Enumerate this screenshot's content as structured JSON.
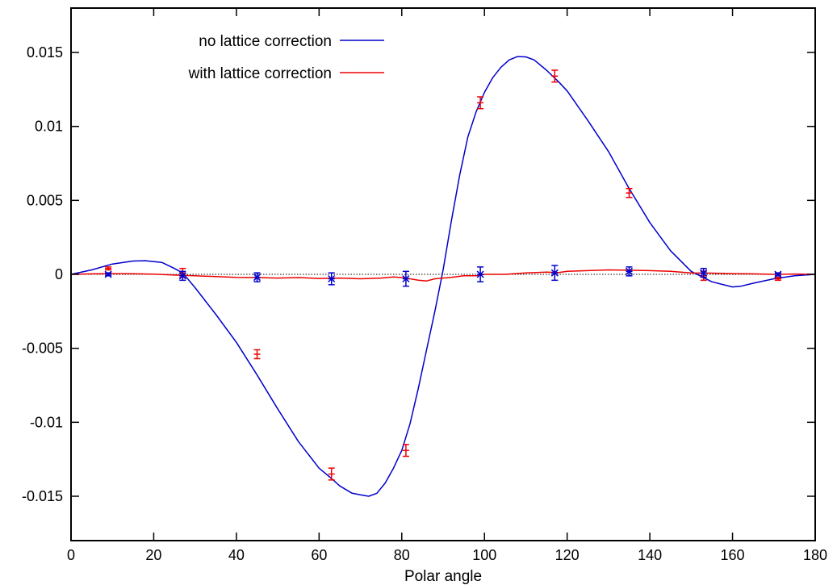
{
  "chart_data": {
    "type": "line",
    "title": "",
    "xlabel": "Polar angle",
    "ylabel": "",
    "xlim": [
      0,
      180
    ],
    "ylim": [
      -0.018,
      0.018
    ],
    "x_ticks": [
      "0",
      "20",
      "40",
      "60",
      "80",
      "100",
      "120",
      "140",
      "160",
      "180"
    ],
    "y_ticks": [
      "-0.015",
      "-0.01",
      "-0.005",
      "0",
      "0.005",
      "0.01",
      "0.015"
    ],
    "legend_position": "top-left",
    "grid": false,
    "zero_reference_line": true,
    "series": [
      {
        "name": "no lattice correction",
        "color": "#0000cc",
        "style": "line",
        "x": [
          0,
          5,
          10,
          15,
          18,
          22,
          25,
          27,
          30,
          35,
          40,
          45,
          50,
          55,
          60,
          63,
          65,
          68,
          70,
          72,
          74,
          76,
          78,
          80,
          82,
          84,
          86,
          88,
          90,
          92,
          94,
          96,
          98,
          100,
          102,
          104,
          106,
          108,
          110,
          112,
          115,
          118,
          120,
          125,
          130,
          135,
          140,
          145,
          150,
          155,
          160,
          162,
          165,
          170,
          175,
          180
        ],
        "y": [
          0,
          0.0003,
          0.0007,
          0.0009,
          0.00092,
          0.0008,
          0.0004,
          0.0001,
          -0.0009,
          -0.0027,
          -0.0046,
          -0.0068,
          -0.0091,
          -0.0113,
          -0.0131,
          -0.0138,
          -0.0143,
          -0.0148,
          -0.0149,
          -0.015,
          -0.0148,
          -0.0141,
          -0.0131,
          -0.0119,
          -0.0101,
          -0.0077,
          -0.0051,
          -0.0025,
          0.0003,
          0.0036,
          0.0067,
          0.0093,
          0.011,
          0.0123,
          0.0133,
          0.014,
          0.0145,
          0.01472,
          0.0147,
          0.0145,
          0.0138,
          0.013,
          0.0124,
          0.0104,
          0.0083,
          0.0058,
          0.0035,
          0.0016,
          0.0002,
          -0.0005,
          -0.00085,
          -0.0008,
          -0.0006,
          -0.0003,
          -0.0001,
          0
        ]
      },
      {
        "name": "with lattice correction",
        "color": "#ee0000",
        "style": "line",
        "x": [
          0,
          5,
          10,
          15,
          20,
          25,
          30,
          35,
          40,
          45,
          50,
          55,
          60,
          65,
          70,
          75,
          78,
          80,
          82,
          84,
          86,
          88,
          90,
          92,
          95,
          98,
          100,
          105,
          110,
          115,
          118,
          120,
          125,
          130,
          135,
          140,
          145,
          150,
          155,
          160,
          165,
          170,
          175,
          180
        ],
        "y": [
          0,
          3e-05,
          5e-05,
          4e-05,
          1e-05,
          -5e-05,
          -0.0001,
          -0.00015,
          -0.0002,
          -0.00022,
          -0.00025,
          -0.00022,
          -0.00028,
          -0.00025,
          -0.0003,
          -0.00025,
          -0.00018,
          -0.00022,
          -0.0003,
          -0.0004,
          -0.00045,
          -0.0003,
          -0.00025,
          -0.0002,
          -0.0001,
          -0.0001,
          0,
          0,
          0.0001,
          0.00015,
          0.00012,
          0.0002,
          0.00025,
          0.0003,
          0.00028,
          0.00025,
          0.0002,
          0.0001,
          8e-05,
          5e-05,
          3e-05,
          0,
          2e-05,
          0
        ]
      }
    ],
    "error_points": [
      {
        "color": "#ee0000",
        "marker": "plus",
        "x": [
          9,
          27,
          45,
          63,
          81,
          99,
          117,
          135,
          153,
          171
        ],
        "y": [
          0.0004,
          0.0001,
          -0.0054,
          -0.0135,
          -0.0119,
          0.0116,
          0.0134,
          0.0055,
          -0.0001,
          -0.0003
        ],
        "err": [
          0.0001,
          0.0003,
          0.0003,
          0.0004,
          0.0004,
          0.0004,
          0.0004,
          0.0003,
          0.0003,
          0.0001
        ]
      },
      {
        "color": "#0000cc",
        "marker": "star",
        "x": [
          9,
          27,
          45,
          63,
          81,
          99,
          117,
          135,
          153,
          171
        ],
        "y": [
          0,
          -0.0001,
          -0.0002,
          -0.0003,
          -0.0003,
          0,
          0.0001,
          0.0002,
          0.0001,
          0
        ],
        "err": [
          0.0001,
          0.0003,
          0.0003,
          0.0004,
          0.0005,
          0.0005,
          0.0005,
          0.0003,
          0.0003,
          0.0001
        ]
      }
    ]
  }
}
